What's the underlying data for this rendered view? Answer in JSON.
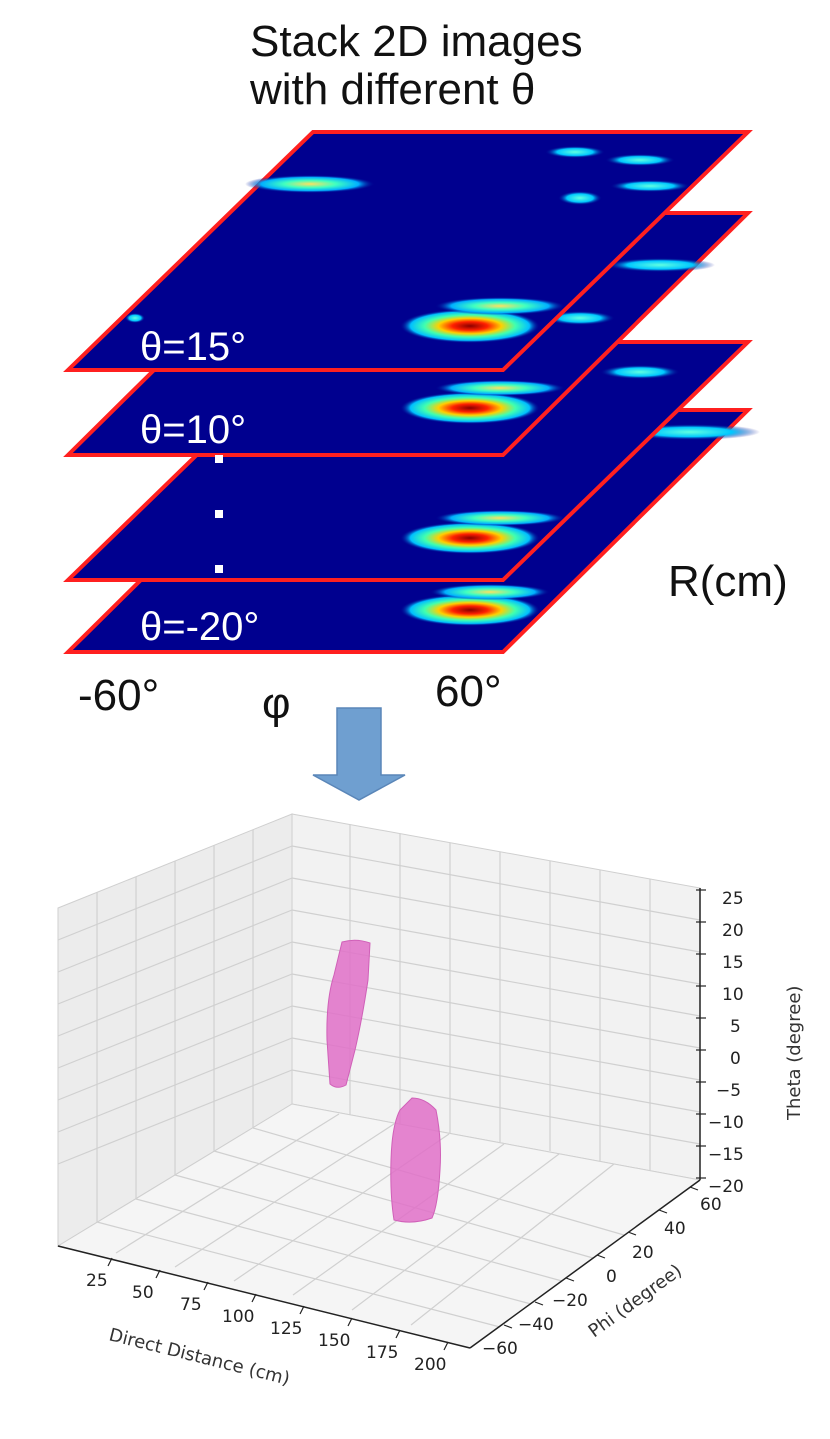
{
  "stack": {
    "title_line1": "Stack 2D images",
    "title_line2": "with different θ",
    "slice_labels": [
      "θ=15°",
      "θ=10°",
      "θ=-20°"
    ],
    "r_label": "R(cm)",
    "phi_min_label": "-60°",
    "phi_label": "φ",
    "phi_max_label": "60°"
  },
  "plot3d": {
    "theta_axis_label": "Theta (degree)",
    "theta_ticks": [
      "25",
      "20",
      "15",
      "10",
      "5",
      "0",
      "−5",
      "−10",
      "−15",
      "−20"
    ],
    "distance_axis_label": "Direct Distance (cm)",
    "distance_ticks": [
      "25",
      "50",
      "75",
      "100",
      "125",
      "150",
      "175",
      "200"
    ],
    "phi_axis_label": "Phi (degree)",
    "phi_ticks": [
      "60",
      "40",
      "20",
      "0",
      "−20",
      "−40",
      "−60"
    ]
  },
  "colors": {
    "slice_fill": "#00008f",
    "slice_border": "#ff2020",
    "arrow": "#6f9fd0",
    "blob": "#e070c8"
  }
}
